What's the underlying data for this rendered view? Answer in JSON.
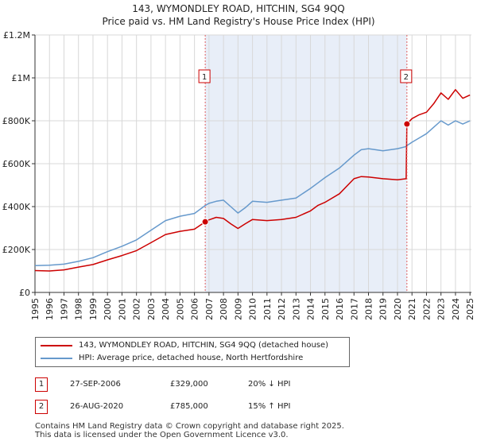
{
  "title_line1": "143, WYMONDLEY ROAD, HITCHIN, SG4 9QQ",
  "title_line2": "Price paid vs. HM Land Registry's House Price Index (HPI)",
  "colors": {
    "property": "#cc0000",
    "hpi": "#6699cc",
    "shade": "#e8eef8",
    "grid": "#d8d8d8",
    "marker_dash": "#e06060"
  },
  "legend": {
    "property_label": "143, WYMONDLEY ROAD, HITCHIN, SG4 9QQ (detached house)",
    "hpi_label": "HPI: Average price, detached house, North Hertfordshire"
  },
  "transactions": [
    {
      "id": "1",
      "date": "27-SEP-2006",
      "price": "£329,000",
      "relation": "20% ↓ HPI"
    },
    {
      "id": "2",
      "date": "26-AUG-2020",
      "price": "£785,000",
      "relation": "15% ↑ HPI"
    }
  ],
  "footer": {
    "line1": "Contains HM Land Registry data © Crown copyright and database right 2025.",
    "line2": "This data is licensed under the Open Government Licence v3.0."
  },
  "chart_data": {
    "type": "line",
    "title": "143, WYMONDLEY ROAD, HITCHIN, SG4 9QQ",
    "subtitle": "Price paid vs. HM Land Registry's House Price Index (HPI)",
    "xlim": [
      1995,
      2025.1
    ],
    "ylim": [
      0,
      1200000
    ],
    "x_ticks": [
      1995,
      1996,
      1997,
      1998,
      1999,
      2000,
      2001,
      2002,
      2003,
      2004,
      2005,
      2006,
      2007,
      2008,
      2009,
      2010,
      2011,
      2012,
      2013,
      2014,
      2015,
      2016,
      2017,
      2018,
      2019,
      2020,
      2021,
      2022,
      2023,
      2024,
      2025
    ],
    "y_ticks": [
      {
        "value": 0,
        "label": "£0"
      },
      {
        "value": 200000,
        "label": "£200K"
      },
      {
        "value": 400000,
        "label": "£400K"
      },
      {
        "value": 600000,
        "label": "£600K"
      },
      {
        "value": 800000,
        "label": "£800K"
      },
      {
        "value": 1000000,
        "label": "£1M"
      },
      {
        "value": 1200000,
        "label": "£1.2M"
      }
    ],
    "grid": true,
    "shaded_range": [
      2006.74,
      2020.65
    ],
    "markers": [
      {
        "label": "1",
        "x": 2006.74,
        "y": 329000,
        "box_y": 1000000
      },
      {
        "label": "2",
        "x": 2020.65,
        "y": 785000,
        "box_y": 1000000
      }
    ],
    "series": [
      {
        "name": "143, WYMONDLEY ROAD, HITCHIN, SG4 9QQ (detached house)",
        "color": "#cc0000",
        "x": [
          1995,
          1996,
          1997,
          1998,
          1999,
          2000,
          2001,
          2002,
          2003,
          2004,
          2005,
          2006,
          2006.74,
          2007,
          2007.5,
          2008,
          2008.5,
          2009,
          2009.5,
          2010,
          2011,
          2012,
          2013,
          2014,
          2014.5,
          2015,
          2016,
          2017,
          2017.5,
          2018,
          2019,
          2020,
          2020.6,
          2020.65,
          2021,
          2021.5,
          2022,
          2022.5,
          2023,
          2023.5,
          2024,
          2024.5,
          2025
        ],
        "y": [
          102000,
          100000,
          105000,
          118000,
          130000,
          152000,
          172000,
          195000,
          232000,
          270000,
          285000,
          295000,
          329000,
          338000,
          350000,
          345000,
          320000,
          298000,
          320000,
          340000,
          335000,
          340000,
          350000,
          380000,
          405000,
          420000,
          460000,
          530000,
          540000,
          538000,
          530000,
          525000,
          530000,
          785000,
          810000,
          828000,
          840000,
          880000,
          930000,
          900000,
          945000,
          905000,
          920000
        ]
      },
      {
        "name": "HPI: Average price, detached house, North Hertfordshire",
        "color": "#6699cc",
        "x": [
          1995,
          1996,
          1997,
          1998,
          1999,
          2000,
          2001,
          2002,
          2003,
          2004,
          2005,
          2006,
          2006.74,
          2007,
          2007.5,
          2008,
          2008.5,
          2009,
          2009.5,
          2010,
          2011,
          2012,
          2013,
          2014,
          2014.5,
          2015,
          2016,
          2017,
          2017.5,
          2018,
          2019,
          2020,
          2020.6,
          2020.65,
          2021,
          2021.5,
          2022,
          2022.5,
          2023,
          2023.5,
          2024,
          2024.5,
          2025
        ],
        "y": [
          125000,
          127000,
          132000,
          145000,
          162000,
          190000,
          215000,
          245000,
          290000,
          335000,
          355000,
          368000,
          405000,
          415000,
          425000,
          430000,
          400000,
          370000,
          395000,
          425000,
          420000,
          430000,
          440000,
          485000,
          510000,
          535000,
          580000,
          640000,
          665000,
          670000,
          660000,
          670000,
          680000,
          684000,
          700000,
          720000,
          740000,
          770000,
          800000,
          780000,
          800000,
          785000,
          800000
        ]
      }
    ]
  }
}
